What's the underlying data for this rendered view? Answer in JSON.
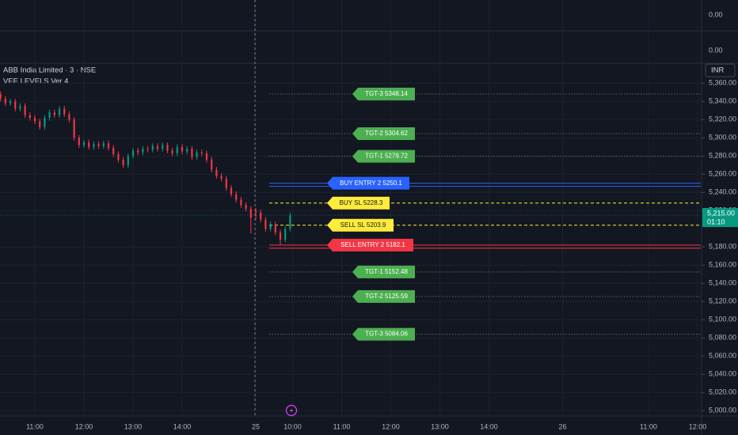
{
  "chart_data": {
    "type": "candlestick",
    "title": "ABB India Limited · 3 · NSE",
    "subtitle": "VEE LEVELS Ver 4",
    "currency": "INR",
    "panes": [
      {
        "value": 0,
        "label": "0.00"
      },
      {
        "value": 0,
        "label": "0.00"
      }
    ],
    "x": [
      -14,
      -12,
      -10,
      -8,
      -6,
      -4,
      -2,
      0,
      2,
      4,
      6,
      8,
      10,
      12,
      14,
      16,
      18,
      20,
      22,
      24,
      26,
      28,
      30,
      32,
      34,
      36,
      38,
      40,
      42,
      44,
      46,
      48,
      50,
      52,
      54,
      56,
      58,
      60,
      62,
      64,
      66,
      68,
      70,
      72,
      74,
      76,
      78,
      80,
      82,
      84,
      86,
      88,
      90,
      92,
      94,
      96,
      98,
      100,
      102,
      104
    ],
    "open": [
      5348,
      5343,
      5338,
      5340,
      5332,
      5335,
      5325,
      5322,
      5318,
      5312,
      5322,
      5328,
      5325,
      5332,
      5326,
      5320,
      5300,
      5292,
      5295,
      5290,
      5293,
      5291,
      5294,
      5289,
      5282,
      5276,
      5270,
      5280,
      5286,
      5284,
      5288,
      5287,
      5291,
      5288,
      5292,
      5286,
      5283,
      5290,
      5285,
      5288,
      5279,
      5284,
      5283,
      5276,
      5265,
      5258,
      5255,
      5245,
      5238,
      5232,
      5226,
      5222,
      5220,
      5218,
      5210,
      5200,
      5205,
      5196,
      5188,
      5200
    ],
    "high": [
      5351,
      5346,
      5343,
      5343,
      5338,
      5338,
      5328,
      5325,
      5321,
      5325,
      5331,
      5331,
      5335,
      5335,
      5329,
      5323,
      5303,
      5298,
      5298,
      5296,
      5296,
      5297,
      5297,
      5292,
      5285,
      5279,
      5283,
      5289,
      5289,
      5291,
      5291,
      5294,
      5294,
      5295,
      5295,
      5289,
      5293,
      5293,
      5291,
      5291,
      5287,
      5287,
      5286,
      5279,
      5268,
      5261,
      5258,
      5248,
      5241,
      5235,
      5229,
      5225,
      5223,
      5221,
      5213,
      5208,
      5208,
      5199,
      5203,
      5218
    ],
    "low": [
      5340,
      5335,
      5335,
      5329,
      5329,
      5322,
      5319,
      5315,
      5309,
      5309,
      5319,
      5322,
      5322,
      5323,
      5317,
      5297,
      5289,
      5289,
      5287,
      5287,
      5288,
      5288,
      5286,
      5279,
      5273,
      5267,
      5267,
      5277,
      5281,
      5281,
      5284,
      5284,
      5285,
      5285,
      5283,
      5280,
      5280,
      5282,
      5282,
      5276,
      5276,
      5280,
      5273,
      5262,
      5255,
      5252,
      5242,
      5235,
      5229,
      5223,
      5219,
      5195,
      5210,
      5207,
      5197,
      5197,
      5193,
      5182,
      5185,
      5197
    ],
    "close": [
      5343,
      5338,
      5340,
      5332,
      5335,
      5325,
      5322,
      5318,
      5312,
      5322,
      5328,
      5325,
      5332,
      5326,
      5320,
      5300,
      5292,
      5295,
      5290,
      5293,
      5291,
      5294,
      5289,
      5282,
      5276,
      5270,
      5280,
      5286,
      5284,
      5288,
      5287,
      5291,
      5288,
      5292,
      5286,
      5283,
      5290,
      5285,
      5288,
      5279,
      5284,
      5283,
      5276,
      5265,
      5258,
      5255,
      5245,
      5238,
      5232,
      5226,
      5222,
      5212,
      5218,
      5210,
      5200,
      5205,
      5196,
      5188,
      5200,
      5215
    ],
    "up_color": "#089981",
    "down_color": "#f23645",
    "xlim": [
      -14.2,
      271.3
    ],
    "ylim": [
      4995,
      5382
    ],
    "xticks": [
      {
        "value": 0,
        "label": "11:00"
      },
      {
        "value": 20,
        "label": "12:00"
      },
      {
        "value": 40,
        "label": "13:00"
      },
      {
        "value": 60,
        "label": "14:00"
      },
      {
        "value": 90,
        "label": "25"
      },
      {
        "value": 105,
        "label": "10:00"
      },
      {
        "value": 125,
        "label": "11:00"
      },
      {
        "value": 145,
        "label": "12:00"
      },
      {
        "value": 165,
        "label": "13:00"
      },
      {
        "value": 185,
        "label": "14:00"
      },
      {
        "value": 215,
        "label": "26"
      },
      {
        "value": 250,
        "label": "11:00"
      },
      {
        "value": 270,
        "label": "12:00"
      }
    ],
    "yticks": [
      {
        "value": 5360,
        "label": "5,360.00"
      },
      {
        "value": 5340,
        "label": "5,340.00"
      },
      {
        "value": 5320,
        "label": "5,320.00"
      },
      {
        "value": 5300,
        "label": "5,300.00"
      },
      {
        "value": 5280,
        "label": "5,280.00"
      },
      {
        "value": 5260,
        "label": "5,260.00"
      },
      {
        "value": 5240,
        "label": "5,240.00"
      },
      {
        "value": 5220,
        "label": "5,220.00"
      },
      {
        "value": 5180,
        "label": "5,180.00"
      },
      {
        "value": 5160,
        "label": "5,160.00"
      },
      {
        "value": 5140,
        "label": "5,140.00"
      },
      {
        "value": 5120,
        "label": "5,120.00"
      },
      {
        "value": 5100,
        "label": "5,100.00"
      },
      {
        "value": 5080,
        "label": "5,080.00"
      },
      {
        "value": 5060,
        "label": "5,060.00"
      },
      {
        "value": 5040,
        "label": "5,040.00"
      },
      {
        "value": 5020,
        "label": "5,020.00"
      },
      {
        "value": 5000,
        "label": "5,000.00"
      }
    ],
    "grid": true,
    "levels": [
      {
        "label": "TGT-3 5348.14",
        "value": 5348.14,
        "color": "#4caf50",
        "line": "dotted"
      },
      {
        "label": "TGT-2 5304.62",
        "value": 5304.62,
        "color": "#4caf50",
        "line": "dotted"
      },
      {
        "label": "TGT-1 5279.72",
        "value": 5279.72,
        "color": "#4caf50",
        "line": "dotted"
      },
      {
        "label": "BUY ENTRY 2 5250.1",
        "value": 5250.1,
        "color": "#2962ff",
        "line": "solid"
      },
      {
        "label": "BUY SL 5228.3",
        "value": 5228.3,
        "color": "#ffeb3b",
        "line": "dashed"
      },
      {
        "label": "SELL SL 5203.9",
        "value": 5203.9,
        "color": "#ffeb3b",
        "line": "dashed"
      },
      {
        "label": "SELL ENTRY 2 5182.1",
        "value": 5182.1,
        "color": "#f23645",
        "line": "solid"
      },
      {
        "label": "TGT-1 5152.48",
        "value": 5152.48,
        "color": "#4caf50",
        "line": "dotted"
      },
      {
        "label": "TGT-2 5125.59",
        "value": 5125.59,
        "color": "#4caf50",
        "line": "dotted"
      },
      {
        "label": "TGT-3 5084.06",
        "value": 5084.06,
        "color": "#4caf50",
        "line": "dotted"
      }
    ],
    "last_price": {
      "value": 5215,
      "label": "5,215.00",
      "timer": "01:10"
    }
  }
}
